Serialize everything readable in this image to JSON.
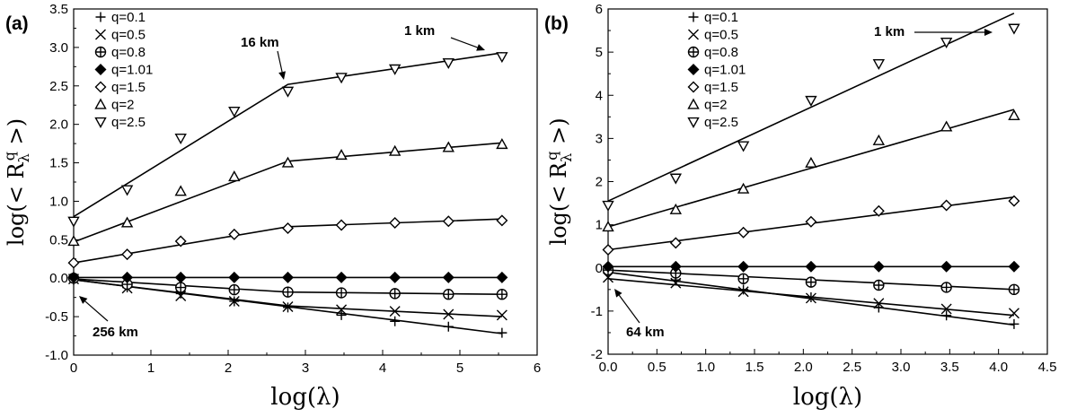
{
  "colors": {
    "axis": "#000000",
    "marker": "#000000",
    "background": "#ffffff"
  },
  "chart_data": [
    {
      "type": "scatter",
      "panel_label": "(a)",
      "xlabel": "log(λ)",
      "ylabel": "log(< R_λ^q >)",
      "xlim": [
        0,
        6
      ],
      "ylim": [
        -1.0,
        3.5
      ],
      "xticks": [
        "0",
        "1",
        "2",
        "3",
        "4",
        "5",
        "6"
      ],
      "yticks": [
        "-1.0",
        "-0.5",
        "0.0",
        "0.5",
        "1.0",
        "1.5",
        "2.0",
        "2.5",
        "3.0",
        "3.5"
      ],
      "grid": false,
      "legend_position": "top-left",
      "x": [
        0,
        0.693,
        1.386,
        2.079,
        2.773,
        3.466,
        4.159,
        4.852,
        5.545
      ],
      "series": [
        {
          "name": "q=0.1",
          "marker": "plus",
          "values": [
            -0.02,
            -0.12,
            -0.2,
            -0.3,
            -0.38,
            -0.48,
            -0.56,
            -0.63,
            -0.71
          ],
          "fit": [
            [
              0,
              -0.02
            ],
            [
              5.545,
              -0.72
            ]
          ]
        },
        {
          "name": "q=0.5",
          "marker": "x",
          "values": [
            -0.01,
            -0.13,
            -0.23,
            -0.3,
            -0.37,
            -0.41,
            -0.43,
            -0.47,
            -0.48
          ],
          "fit": [
            [
              0,
              -0.02
            ],
            [
              2.773,
              -0.36
            ],
            [
              5.545,
              -0.5
            ]
          ]
        },
        {
          "name": "q=0.8",
          "marker": "circle-plus",
          "values": [
            0,
            -0.08,
            -0.12,
            -0.15,
            -0.18,
            -0.19,
            -0.2,
            -0.21,
            -0.21
          ],
          "fit": [
            [
              0,
              -0.01
            ],
            [
              2.773,
              -0.18
            ],
            [
              5.545,
              -0.21
            ]
          ]
        },
        {
          "name": "q=1.01",
          "marker": "diamond-filled",
          "values": [
            0.01,
            0.01,
            0.01,
            0.01,
            0.01,
            0.01,
            0.01,
            0.01,
            0.01
          ],
          "fit": [
            [
              0,
              0.01
            ],
            [
              5.545,
              0.01
            ]
          ]
        },
        {
          "name": "q=1.5",
          "marker": "diamond",
          "values": [
            0.2,
            0.31,
            0.48,
            0.57,
            0.65,
            0.69,
            0.72,
            0.74,
            0.75
          ],
          "fit": [
            [
              0,
              0.2
            ],
            [
              2.773,
              0.67
            ],
            [
              5.545,
              0.77
            ]
          ]
        },
        {
          "name": "q=2",
          "marker": "triangle-up",
          "values": [
            0.48,
            0.72,
            1.13,
            1.32,
            1.5,
            1.6,
            1.65,
            1.7,
            1.74
          ],
          "fit": [
            [
              0,
              0.47
            ],
            [
              2.773,
              1.52
            ],
            [
              5.545,
              1.76
            ]
          ]
        },
        {
          "name": "q=2.5",
          "marker": "triangle-down",
          "values": [
            0.74,
            1.15,
            1.82,
            2.17,
            2.43,
            2.61,
            2.72,
            2.8,
            2.88
          ],
          "fit": [
            [
              0,
              0.8
            ],
            [
              2.773,
              2.52
            ],
            [
              5.545,
              2.93
            ]
          ]
        }
      ],
      "annotations": [
        {
          "text": "16 km",
          "x": 2.773,
          "y": 2.5
        },
        {
          "text": "1 km",
          "x": 5.545,
          "y": 2.9
        },
        {
          "text": "256 km",
          "x": 0,
          "y": -0.05
        }
      ]
    },
    {
      "type": "scatter",
      "panel_label": "(b)",
      "xlabel": "log(λ)",
      "ylabel": "log(< R_λ^q >)",
      "xlim": [
        0,
        4.5
      ],
      "ylim": [
        -2,
        6
      ],
      "xticks": [
        "0.0",
        "0.5",
        "1.0",
        "1.5",
        "2.0",
        "2.5",
        "3.0",
        "3.5",
        "4.0",
        "4.5"
      ],
      "yticks": [
        "-2",
        "-1",
        "0",
        "1",
        "2",
        "3",
        "4",
        "5",
        "6"
      ],
      "grid": false,
      "legend_position": "top-left",
      "x": [
        0,
        0.693,
        1.386,
        2.079,
        2.773,
        3.466,
        4.159
      ],
      "series": [
        {
          "name": "q=0.1",
          "marker": "plus",
          "values": [
            -0.1,
            -0.28,
            -0.5,
            -0.68,
            -0.92,
            -1.1,
            -1.3
          ],
          "fit": [
            [
              0,
              -0.1
            ],
            [
              4.159,
              -1.32
            ]
          ]
        },
        {
          "name": "q=0.5",
          "marker": "x",
          "values": [
            -0.22,
            -0.35,
            -0.55,
            -0.7,
            -0.82,
            -0.95,
            -1.05
          ],
          "fit": [
            [
              0,
              -0.25
            ],
            [
              4.159,
              -1.1
            ]
          ]
        },
        {
          "name": "q=0.8",
          "marker": "circle-plus",
          "values": [
            -0.05,
            -0.12,
            -0.25,
            -0.33,
            -0.4,
            -0.45,
            -0.5
          ],
          "fit": [
            [
              0,
              -0.05
            ],
            [
              4.159,
              -0.5
            ]
          ]
        },
        {
          "name": "q=1.01",
          "marker": "diamond-filled",
          "values": [
            0.03,
            0.03,
            0.03,
            0.03,
            0.03,
            0.03,
            0.03
          ],
          "fit": [
            [
              0,
              0.03
            ],
            [
              4.159,
              0.03
            ]
          ]
        },
        {
          "name": "q=1.5",
          "marker": "diamond",
          "values": [
            0.42,
            0.58,
            0.82,
            1.07,
            1.32,
            1.45,
            1.55
          ],
          "fit": [
            [
              0,
              0.42
            ],
            [
              4.159,
              1.64
            ]
          ]
        },
        {
          "name": "q=2",
          "marker": "triangle-up",
          "values": [
            0.95,
            1.35,
            1.83,
            2.43,
            2.95,
            3.27,
            3.53
          ],
          "fit": [
            [
              0,
              0.95
            ],
            [
              4.159,
              3.67
            ]
          ]
        },
        {
          "name": "q=2.5",
          "marker": "triangle-down",
          "values": [
            1.45,
            2.08,
            2.83,
            3.88,
            4.73,
            5.23,
            5.55
          ],
          "fit": [
            [
              0,
              1.55
            ],
            [
              4.159,
              5.9
            ]
          ]
        }
      ],
      "annotations": [
        {
          "text": "1 km",
          "x": 4.159,
          "y": 5.8
        },
        {
          "text": "64 km",
          "x": 0,
          "y": -0.3
        }
      ]
    }
  ]
}
